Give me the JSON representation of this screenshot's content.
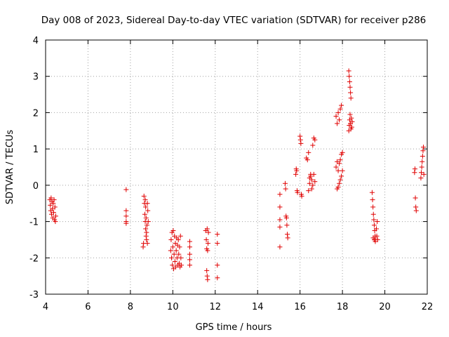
{
  "chart_data": {
    "type": "scatter",
    "title": "Day 008 of 2023, Sidereal Day-to-day VTEC variation (SDTVAR) for receiver p286",
    "xlabel": "GPS time / hours",
    "ylabel": "SDTVAR / TECUs",
    "xlim": [
      4,
      22
    ],
    "ylim": [
      -3,
      4
    ],
    "xticks": [
      "4",
      "6",
      "8",
      "10",
      "12",
      "14",
      "16",
      "18",
      "20",
      "22"
    ],
    "yticks": [
      "-3",
      "-2",
      "-1",
      "0",
      "1",
      "2",
      "3",
      "4"
    ],
    "grid": true,
    "marker": "+",
    "marker_color": "#e00000",
    "series": [
      {
        "name": "p286",
        "points": [
          [
            4.2,
            -0.4
          ],
          [
            4.22,
            -0.55
          ],
          [
            4.24,
            -0.7
          ],
          [
            4.26,
            -0.35
          ],
          [
            4.28,
            -0.8
          ],
          [
            4.3,
            -0.45
          ],
          [
            4.32,
            -0.65
          ],
          [
            4.34,
            -0.9
          ],
          [
            4.36,
            -0.5
          ],
          [
            4.38,
            -0.75
          ],
          [
            4.4,
            -0.4
          ],
          [
            4.42,
            -0.95
          ],
          [
            4.44,
            -0.6
          ],
          [
            4.46,
            -1.0
          ],
          [
            4.48,
            -0.85
          ],
          [
            7.8,
            -0.12
          ],
          [
            7.8,
            -0.7
          ],
          [
            7.8,
            -0.85
          ],
          [
            7.8,
            -1.0
          ],
          [
            7.8,
            -1.05
          ],
          [
            8.6,
            -1.7
          ],
          [
            8.62,
            -1.6
          ],
          [
            8.64,
            -0.3
          ],
          [
            8.66,
            -0.5
          ],
          [
            8.68,
            -0.8
          ],
          [
            8.7,
            -1.0
          ],
          [
            8.72,
            -1.2
          ],
          [
            8.74,
            -1.4
          ],
          [
            8.76,
            -1.5
          ],
          [
            8.7,
            -0.4
          ],
          [
            8.72,
            -0.6
          ],
          [
            8.74,
            -0.9
          ],
          [
            8.78,
            -1.1
          ],
          [
            8.8,
            -0.5
          ],
          [
            8.82,
            -0.7
          ],
          [
            8.84,
            -1.0
          ],
          [
            8.76,
            -1.3
          ],
          [
            8.8,
            -1.6
          ],
          [
            9.9,
            -1.8
          ],
          [
            9.92,
            -1.5
          ],
          [
            9.94,
            -2.0
          ],
          [
            9.96,
            -1.3
          ],
          [
            9.98,
            -2.2
          ],
          [
            10.0,
            -1.7
          ],
          [
            10.02,
            -1.25
          ],
          [
            10.04,
            -2.3
          ],
          [
            10.06,
            -1.9
          ],
          [
            10.08,
            -1.4
          ],
          [
            10.1,
            -2.1
          ],
          [
            10.12,
            -1.6
          ],
          [
            10.14,
            -2.25
          ],
          [
            10.16,
            -1.8
          ],
          [
            10.18,
            -1.45
          ],
          [
            10.2,
            -2.0
          ],
          [
            10.22,
            -1.65
          ],
          [
            10.24,
            -2.2
          ],
          [
            10.26,
            -1.5
          ],
          [
            10.28,
            -1.9
          ],
          [
            10.3,
            -2.15
          ],
          [
            10.32,
            -1.7
          ],
          [
            10.34,
            -2.25
          ],
          [
            10.36,
            -1.4
          ],
          [
            10.38,
            -2.0
          ],
          [
            10.4,
            -2.2
          ],
          [
            10.8,
            -1.55
          ],
          [
            10.8,
            -1.7
          ],
          [
            10.8,
            -1.9
          ],
          [
            10.8,
            -2.05
          ],
          [
            10.8,
            -2.2
          ],
          [
            11.55,
            -1.25
          ],
          [
            11.58,
            -1.5
          ],
          [
            11.6,
            -1.75
          ],
          [
            11.62,
            -1.2
          ],
          [
            11.64,
            -1.8
          ],
          [
            11.6,
            -2.35
          ],
          [
            11.62,
            -2.5
          ],
          [
            11.64,
            -2.6
          ],
          [
            11.66,
            -1.6
          ],
          [
            11.68,
            -1.3
          ],
          [
            12.1,
            -1.35
          ],
          [
            12.1,
            -1.6
          ],
          [
            12.1,
            -2.2
          ],
          [
            12.1,
            -2.55
          ],
          [
            15.05,
            -0.25
          ],
          [
            15.05,
            -0.6
          ],
          [
            15.05,
            -0.95
          ],
          [
            15.05,
            -1.15
          ],
          [
            15.05,
            -1.7
          ],
          [
            15.3,
            0.05
          ],
          [
            15.32,
            -0.1
          ],
          [
            15.34,
            -0.85
          ],
          [
            15.36,
            -0.9
          ],
          [
            15.38,
            -1.1
          ],
          [
            15.4,
            -1.35
          ],
          [
            15.42,
            -1.45
          ],
          [
            15.8,
            0.3
          ],
          [
            15.82,
            0.45
          ],
          [
            15.84,
            0.4
          ],
          [
            15.86,
            -0.15
          ],
          [
            15.88,
            -0.2
          ],
          [
            16.0,
            1.35
          ],
          [
            16.02,
            1.25
          ],
          [
            16.04,
            1.15
          ],
          [
            16.06,
            -0.25
          ],
          [
            16.08,
            -0.3
          ],
          [
            16.3,
            0.75
          ],
          [
            16.35,
            0.7
          ],
          [
            16.4,
            0.9
          ],
          [
            16.45,
            0.2
          ],
          [
            16.5,
            0.3
          ],
          [
            16.55,
            -0.1
          ],
          [
            16.6,
            1.1
          ],
          [
            16.65,
            1.3
          ],
          [
            16.7,
            1.25
          ],
          [
            16.4,
            -0.15
          ],
          [
            16.45,
            0.05
          ],
          [
            16.5,
            0.25
          ],
          [
            16.55,
            0.15
          ],
          [
            16.6,
            0.0
          ],
          [
            16.65,
            0.3
          ],
          [
            16.7,
            0.1
          ],
          [
            17.7,
            1.9
          ],
          [
            17.75,
            1.7
          ],
          [
            17.8,
            2.0
          ],
          [
            17.85,
            1.8
          ],
          [
            17.9,
            2.1
          ],
          [
            17.95,
            2.2
          ],
          [
            17.7,
            0.5
          ],
          [
            17.75,
            0.65
          ],
          [
            17.8,
            0.4
          ],
          [
            17.85,
            0.6
          ],
          [
            17.9,
            0.7
          ],
          [
            17.95,
            0.85
          ],
          [
            17.75,
            -0.1
          ],
          [
            17.8,
            -0.05
          ],
          [
            17.85,
            0.05
          ],
          [
            17.9,
            0.15
          ],
          [
            17.95,
            0.25
          ],
          [
            18.0,
            0.4
          ],
          [
            18.0,
            0.9
          ],
          [
            18.3,
            3.15
          ],
          [
            18.32,
            3.0
          ],
          [
            18.34,
            2.85
          ],
          [
            18.36,
            2.7
          ],
          [
            18.38,
            2.55
          ],
          [
            18.4,
            2.4
          ],
          [
            18.3,
            1.5
          ],
          [
            18.32,
            1.65
          ],
          [
            18.34,
            1.8
          ],
          [
            18.36,
            1.95
          ],
          [
            18.38,
            1.7
          ],
          [
            18.4,
            1.55
          ],
          [
            18.42,
            1.85
          ],
          [
            18.44,
            1.6
          ],
          [
            18.46,
            1.75
          ],
          [
            19.4,
            -0.2
          ],
          [
            19.42,
            -0.4
          ],
          [
            19.44,
            -0.6
          ],
          [
            19.46,
            -0.8
          ],
          [
            19.48,
            -0.95
          ],
          [
            19.5,
            -1.1
          ],
          [
            19.52,
            -1.25
          ],
          [
            19.54,
            -1.4
          ],
          [
            19.56,
            -1.5
          ],
          [
            19.45,
            -1.45
          ],
          [
            19.5,
            -1.5
          ],
          [
            19.55,
            -1.55
          ],
          [
            19.6,
            -1.2
          ],
          [
            19.62,
            -1.4
          ],
          [
            19.64,
            -1.0
          ],
          [
            19.66,
            -1.5
          ],
          [
            21.4,
            0.35
          ],
          [
            21.42,
            0.45
          ],
          [
            21.44,
            -0.35
          ],
          [
            21.46,
            -0.6
          ],
          [
            21.48,
            -0.7
          ],
          [
            21.7,
            0.2
          ],
          [
            21.72,
            0.35
          ],
          [
            21.74,
            0.5
          ],
          [
            21.76,
            0.65
          ],
          [
            21.78,
            0.8
          ],
          [
            21.8,
            0.95
          ],
          [
            21.82,
            1.05
          ],
          [
            21.84,
            0.3
          ]
        ]
      }
    ]
  }
}
